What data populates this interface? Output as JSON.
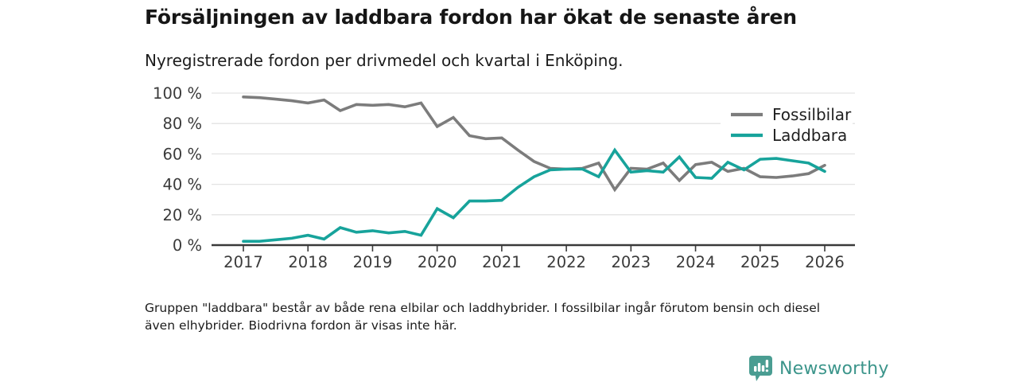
{
  "header": {
    "title": "Försäljningen av laddbara fordon har ökat de senaste åren",
    "subtitle": "Nyregistrerade fordon per drivmedel och kvartal i Enköping."
  },
  "chart_data": {
    "type": "line",
    "x_unit": "quarter",
    "x_start_year": 2017,
    "x_step_years": 0.25,
    "x_tick_labels": [
      "2017",
      "2018",
      "2019",
      "2020",
      "2021",
      "2022",
      "2023",
      "2024",
      "2025",
      "2026"
    ],
    "y_tick_labels": [
      "0 %",
      "20 %",
      "40 %",
      "60 %",
      "80 %",
      "100 %"
    ],
    "y_tick_values": [
      0,
      20,
      40,
      60,
      80,
      100
    ],
    "ylim": [
      0,
      100
    ],
    "grid": true,
    "legend_position": "top-right",
    "series": [
      {
        "name": "Fossilbilar",
        "color": "#7c7c7c",
        "values": [
          97.5,
          97,
          96,
          95,
          93.5,
          95.5,
          88.5,
          92.5,
          92,
          92.5,
          91,
          93.5,
          78,
          84,
          72,
          70,
          70.5,
          62.5,
          55,
          50.5,
          50,
          50.5,
          54,
          36.5,
          50.5,
          50,
          54,
          42.5,
          53,
          54.5,
          48.5,
          50.5,
          45,
          44.5,
          45.5,
          47,
          52.5
        ]
      },
      {
        "name": "Laddbara",
        "color": "#17a39b",
        "values": [
          2.5,
          2.5,
          3.5,
          4.5,
          6.5,
          4,
          11.5,
          8.5,
          9.5,
          8,
          9,
          6.5,
          24,
          18,
          29,
          29,
          29.5,
          38,
          45,
          49.5,
          50,
          50,
          45,
          62.5,
          48,
          49,
          48,
          58,
          44.5,
          44,
          54.5,
          49.5,
          56.5,
          57,
          55.5,
          54,
          48.5
        ]
      }
    ],
    "axis_color": "#3a3a3a",
    "grid_color": "#e3e3e3",
    "label_color": "#3a3a3a"
  },
  "footnote": "Gruppen \"laddbara\" består av både rena elbilar och laddhybrider. I fossilbilar ingår förutom bensin och diesel även elhybrider. Biodrivna fordon är visas inte här.",
  "branding": {
    "logo_text": "Newsworthy",
    "icon_color": "#4a9d92",
    "text_color": "#3c958b"
  }
}
